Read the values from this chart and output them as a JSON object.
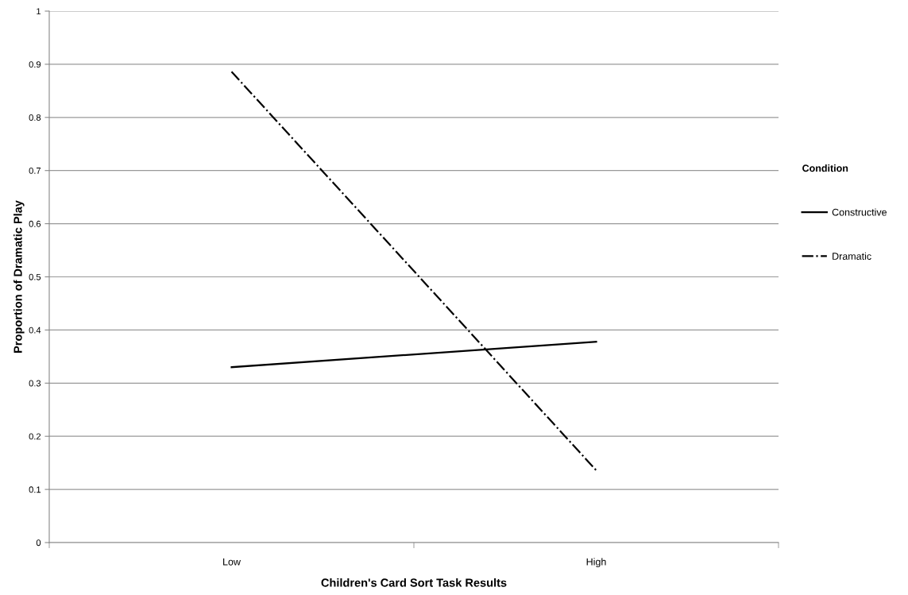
{
  "chart_data": {
    "type": "line",
    "xlabel": "Children's Card Sort Task Results",
    "ylabel": "Proportion of Dramatic Play",
    "legend_title": "Condition",
    "categories": [
      "Low",
      "High"
    ],
    "series": [
      {
        "name": "Constructive",
        "color": "#000000",
        "line_style": "solid",
        "values": [
          0.33,
          0.378
        ]
      },
      {
        "name": "Dramatic",
        "color": "#000000",
        "line_style": "dashdot",
        "values": [
          0.886,
          0.136
        ]
      }
    ],
    "ylim": [
      0,
      1
    ],
    "yticks": [
      0,
      0.1,
      0.2,
      0.3,
      0.4,
      0.5,
      0.6,
      0.7,
      0.8,
      0.9,
      1
    ],
    "grid": "y",
    "legend": "right",
    "marker": "none"
  }
}
